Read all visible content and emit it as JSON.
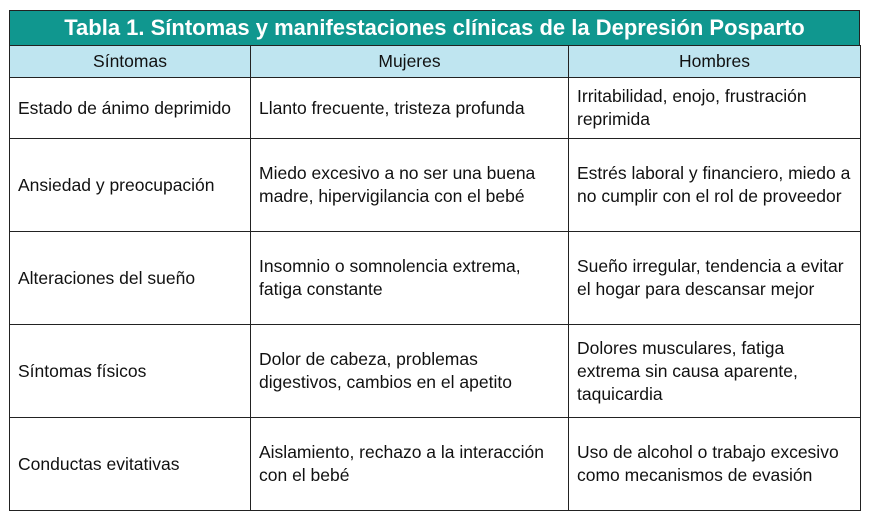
{
  "title": "Tabla 1. Síntomas y manifestaciones clínicas de la Depresión Posparto",
  "colors": {
    "title_bg": "#10978f",
    "header_bg": "#bfe5f0"
  },
  "columns": [
    "Síntomas",
    "Mujeres",
    "Hombres"
  ],
  "rows": [
    [
      "Estado de ánimo deprimido",
      "Llanto frecuente, tristeza profunda",
      "Irritabilidad, enojo, frustración reprimida"
    ],
    [
      "Ansiedad y preocupación",
      "Miedo excesivo a no ser una buena madre, hipervigilancia con el bebé",
      "Estrés laboral y financiero, miedo a no cumplir con el rol de proveedor"
    ],
    [
      "Alteraciones del sueño",
      "Insomnio o somnolencia extrema, fatiga constante",
      "Sueño irregular, tendencia a evitar el hogar para descansar mejor"
    ],
    [
      "Síntomas físicos",
      "Dolor de cabeza, problemas digestivos, cambios en el apetito",
      "Dolores musculares, fatiga extrema sin causa aparente, taquicardia"
    ],
    [
      "Conductas evitativas",
      "Aislamiento, rechazo a la interacción con el bebé",
      "Uso de alcohol o trabajo excesivo como mecanismos de evasión"
    ]
  ]
}
